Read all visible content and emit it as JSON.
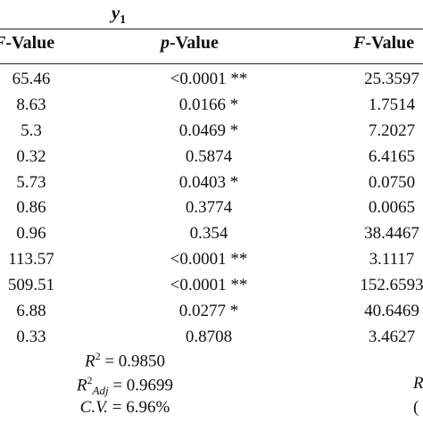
{
  "table": {
    "group_label": "y",
    "group_sub": "1",
    "headers": {
      "f_value_1": {
        "var": "F",
        "rest": "-Value"
      },
      "p_value_1": {
        "var": "p",
        "rest": "-Value"
      },
      "f_value_2": {
        "var": "F",
        "rest": "-Value"
      }
    },
    "rows": [
      {
        "f1": "65.46",
        "p1": "<0.0001 **",
        "f2": "25.3597"
      },
      {
        "f1": "8.63",
        "p1": "0.0166 *",
        "f2": "1.7514"
      },
      {
        "f1": "5.3",
        "p1": "0.0469 *",
        "f2": "7.2027"
      },
      {
        "f1": "0.32",
        "p1": "0.5874",
        "f2": "6.4165"
      },
      {
        "f1": "5.73",
        "p1": "0.0403 *",
        "f2": "0.0750"
      },
      {
        "f1": "0.86",
        "p1": "0.3774",
        "f2": "0.0065"
      },
      {
        "f1": "0.96",
        "p1": "0.354",
        "f2": "38.4467"
      },
      {
        "f1": "113.57",
        "p1": "<0.0001 **",
        "f2": "3.1117"
      },
      {
        "f1": "509.51",
        "p1": "<0.0001 **",
        "f2": "152.6593"
      },
      {
        "f1": "6.88",
        "p1": "0.0277 *",
        "f2": "40.6469"
      },
      {
        "f1": "0.33",
        "p1": "0.8708",
        "f2": "3.4627"
      }
    ],
    "stats": {
      "r2": {
        "sym": "R",
        "sup": "2",
        "value": " = 0.9850"
      },
      "r2_adj": {
        "sym": "R",
        "sup": "2",
        "sub": "Adj",
        "value": " = 0.9699"
      },
      "cv": {
        "sym": "C.V.",
        "value": " = 6.96%"
      }
    },
    "edge_glyphs": [
      "R",
      "("
    ]
  }
}
